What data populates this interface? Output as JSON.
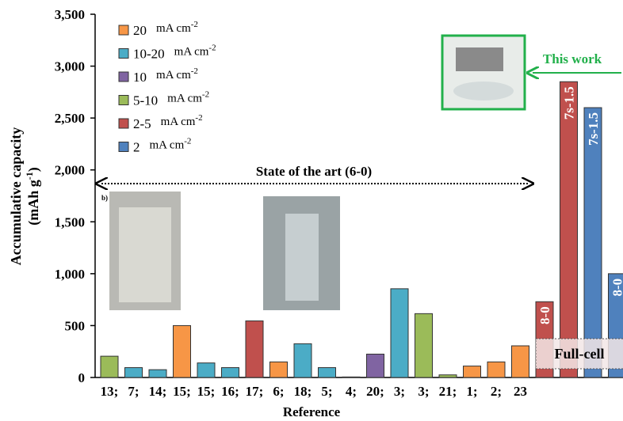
{
  "chart_data": {
    "type": "bar",
    "y_label": {
      "line1": "Accumulative capacity",
      "line2": "(mAh g",
      "sup": "-1",
      "end": ")"
    },
    "x_label": "Reference",
    "categories": [
      "13;",
      "7;",
      "14;",
      "15;",
      "15;",
      "16;",
      "17;",
      "6;",
      "18;",
      "5;",
      "4;",
      "20;",
      "3;",
      "3;",
      "21;",
      "1;",
      "2;",
      "23",
      null,
      null,
      null,
      null
    ],
    "legend_unit": {
      "base": "mA cm",
      "sup": "-2"
    },
    "series": [
      {
        "name": "20",
        "color": "#f79646",
        "values": [
          null,
          null,
          null,
          500,
          null,
          null,
          null,
          150,
          null,
          null,
          null,
          null,
          null,
          null,
          null,
          110,
          150,
          305,
          null,
          null,
          null,
          null
        ]
      },
      {
        "name": "10-20",
        "color": "#4bacc6",
        "values": [
          null,
          95,
          75,
          null,
          140,
          95,
          null,
          null,
          325,
          95,
          5,
          null,
          855,
          null,
          null,
          null,
          null,
          null,
          null,
          null,
          null,
          null
        ]
      },
      {
        "name": "10",
        "color": "#8064a2",
        "values": [
          null,
          null,
          null,
          null,
          null,
          null,
          null,
          null,
          null,
          null,
          null,
          225,
          null,
          null,
          null,
          null,
          null,
          null,
          null,
          null,
          null,
          null
        ]
      },
      {
        "name": "5-10",
        "color": "#9bbb59",
        "values": [
          205,
          null,
          null,
          null,
          null,
          null,
          null,
          null,
          null,
          null,
          null,
          null,
          null,
          615,
          25,
          null,
          null,
          null,
          null,
          null,
          null,
          null
        ]
      },
      {
        "name": "2-5",
        "color": "#c0504d",
        "values": [
          null,
          null,
          null,
          null,
          null,
          null,
          545,
          null,
          null,
          null,
          null,
          null,
          null,
          null,
          null,
          null,
          null,
          null,
          730,
          2850,
          null,
          null
        ]
      },
      {
        "name": "2",
        "color": "#4f81bd",
        "values": [
          null,
          null,
          null,
          null,
          null,
          null,
          null,
          null,
          null,
          null,
          null,
          null,
          null,
          null,
          null,
          null,
          null,
          null,
          null,
          null,
          2600,
          1000
        ]
      }
    ],
    "bar_labels": [
      null,
      null,
      null,
      null,
      null,
      null,
      null,
      null,
      null,
      null,
      null,
      null,
      null,
      null,
      null,
      null,
      null,
      null,
      "8-0",
      "7s-1.5",
      "7s-1.5",
      "8-0"
    ],
    "ylim": [
      0,
      3500
    ],
    "yticks": [
      0,
      500,
      {
        "value": 1000,
        "label": "1,000"
      },
      {
        "value": 1500,
        "label": "1,500"
      },
      {
        "value": 2000,
        "label": "2,000"
      },
      {
        "value": 2500,
        "label": "2,500"
      },
      {
        "value": 3000,
        "label": "3,000"
      },
      {
        "value": 3500,
        "label": "3,500"
      }
    ],
    "annotations": {
      "state": "State of the art (6-0)",
      "this_work": "This work",
      "full_cell": "Full-cell",
      "inset_b": "b)"
    }
  }
}
